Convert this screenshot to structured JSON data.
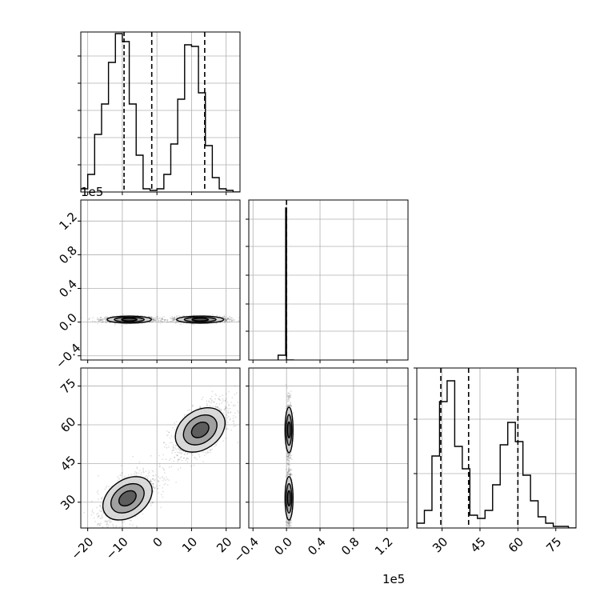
{
  "offset_text": "1e5",
  "colors": {
    "line": "#000000",
    "grid": "#b0b0b0",
    "density_dark": "#555555",
    "density_mid": "#9a9a9a",
    "density_light": "#d6d6d6"
  },
  "chart_data": [
    {
      "id": "hist-p1",
      "type": "bar",
      "description_free": true,
      "xlim": [
        -22,
        24
      ],
      "ylim": [
        0,
        1.0
      ],
      "bin_edges": [
        -22,
        -20,
        -18,
        -16,
        -14,
        -12,
        -10,
        -8,
        -6,
        -4,
        -2,
        0,
        2,
        4,
        6,
        8,
        10,
        12,
        14,
        16,
        18,
        20,
        22,
        24
      ],
      "values": [
        0.02,
        0.11,
        0.36,
        0.55,
        0.81,
        0.99,
        0.94,
        0.55,
        0.23,
        0.02,
        0.01,
        0.02,
        0.11,
        0.3,
        0.58,
        0.92,
        0.91,
        0.62,
        0.29,
        0.09,
        0.02,
        0.01,
        0.0
      ],
      "quantile_lines": [
        -9.5,
        -1.5,
        13.8
      ],
      "quantile_styles": [
        "dashed-fine",
        "dashed",
        "dashed"
      ],
      "xticks": [
        -20,
        -10,
        0,
        10,
        20
      ],
      "yticks": [
        0.17,
        0.34,
        0.51,
        0.68,
        0.85
      ],
      "grid": true
    },
    {
      "id": "hist-p2",
      "type": "bar",
      "xlim": [
        -0.45,
        1.45
      ],
      "ylim": [
        0,
        1.0
      ],
      "bin_edges": [
        -0.1,
        -0.01,
        0.0,
        0.09
      ],
      "values": [
        0.03,
        0.95,
        0.0
      ],
      "quantile_lines": [
        0.0
      ],
      "xticks": [
        -0.4,
        0.0,
        0.4,
        0.8,
        1.2
      ],
      "yticks": [
        0.18,
        0.35,
        0.53,
        0.71,
        0.88
      ],
      "grid": true
    },
    {
      "id": "hist-p3",
      "type": "bar",
      "xlim": [
        20,
        83
      ],
      "ylim": [
        0,
        1.0
      ],
      "bin_edges": [
        20,
        23,
        26,
        29,
        32,
        35,
        38,
        41,
        44,
        47,
        50,
        53,
        56,
        59,
        62,
        65,
        68,
        71,
        74,
        77,
        80,
        83
      ],
      "values": [
        0.03,
        0.11,
        0.45,
        0.79,
        0.92,
        0.51,
        0.37,
        0.08,
        0.06,
        0.11,
        0.27,
        0.52,
        0.66,
        0.54,
        0.33,
        0.17,
        0.07,
        0.03,
        0.01,
        0.01,
        0.0
      ],
      "quantile_lines": [
        29.5,
        40.5,
        60.0
      ],
      "xticks": [
        30,
        45,
        60,
        75
      ],
      "xticklabels": [
        "30",
        "45",
        "60",
        "75"
      ],
      "yticks": [
        0.34,
        0.68,
        1.0
      ],
      "grid": true
    },
    {
      "id": "scatter-p1-p2",
      "type": "scatter",
      "xlim": [
        -22,
        24
      ],
      "ylim": [
        -0.45,
        1.45
      ],
      "xticks": [
        -20,
        -10,
        0,
        10,
        20
      ],
      "yticks": [
        -0.4,
        0.0,
        0.4,
        0.8,
        1.2
      ],
      "yticklabels": [
        "−0.4",
        "0.0",
        "0.4",
        "0.8",
        "1.2"
      ],
      "clusters": [
        {
          "cx": -8,
          "cy": 0.03,
          "sx": 3.2,
          "sy": 0.015,
          "n": 900
        },
        {
          "cx": 12.5,
          "cy": 0.03,
          "sx": 3.4,
          "sy": 0.015,
          "n": 900
        }
      ],
      "grid": true
    },
    {
      "id": "scatter-p1-p3",
      "type": "scatter",
      "xlim": [
        -22,
        24
      ],
      "ylim": [
        20,
        82
      ],
      "xticks": [
        -20,
        -10,
        0,
        10,
        20
      ],
      "xticklabels": [
        "−20",
        "−10",
        "0",
        "10",
        "20"
      ],
      "yticks": [
        30,
        45,
        60,
        75
      ],
      "yticklabels": [
        "30",
        "45",
        "60",
        "75"
      ],
      "clusters": [
        {
          "cx": -8.5,
          "cy": 31.5,
          "sx": 3.4,
          "sy": 4.2,
          "rho": 0.6,
          "n": 1100
        },
        {
          "cx": 12.5,
          "cy": 58.0,
          "sx": 3.4,
          "sy": 4.4,
          "rho": 0.6,
          "n": 1100
        }
      ],
      "grid": true
    },
    {
      "id": "scatter-p2-p3",
      "type": "scatter",
      "xlim": [
        -0.45,
        1.45
      ],
      "ylim": [
        20,
        82
      ],
      "xticks": [
        -0.4,
        0.0,
        0.4,
        0.8,
        1.2
      ],
      "xticklabels": [
        "−0.4",
        "0.0",
        "0.4",
        "0.8",
        "1.2"
      ],
      "yticks": [
        30,
        45,
        60,
        75
      ],
      "clusters": [
        {
          "cx": 0.03,
          "cy": 31.5,
          "sx": 0.012,
          "sy": 4.2,
          "n": 900
        },
        {
          "cx": 0.03,
          "cy": 58.0,
          "sx": 0.012,
          "sy": 4.4,
          "n": 900
        }
      ],
      "grid": true
    }
  ]
}
